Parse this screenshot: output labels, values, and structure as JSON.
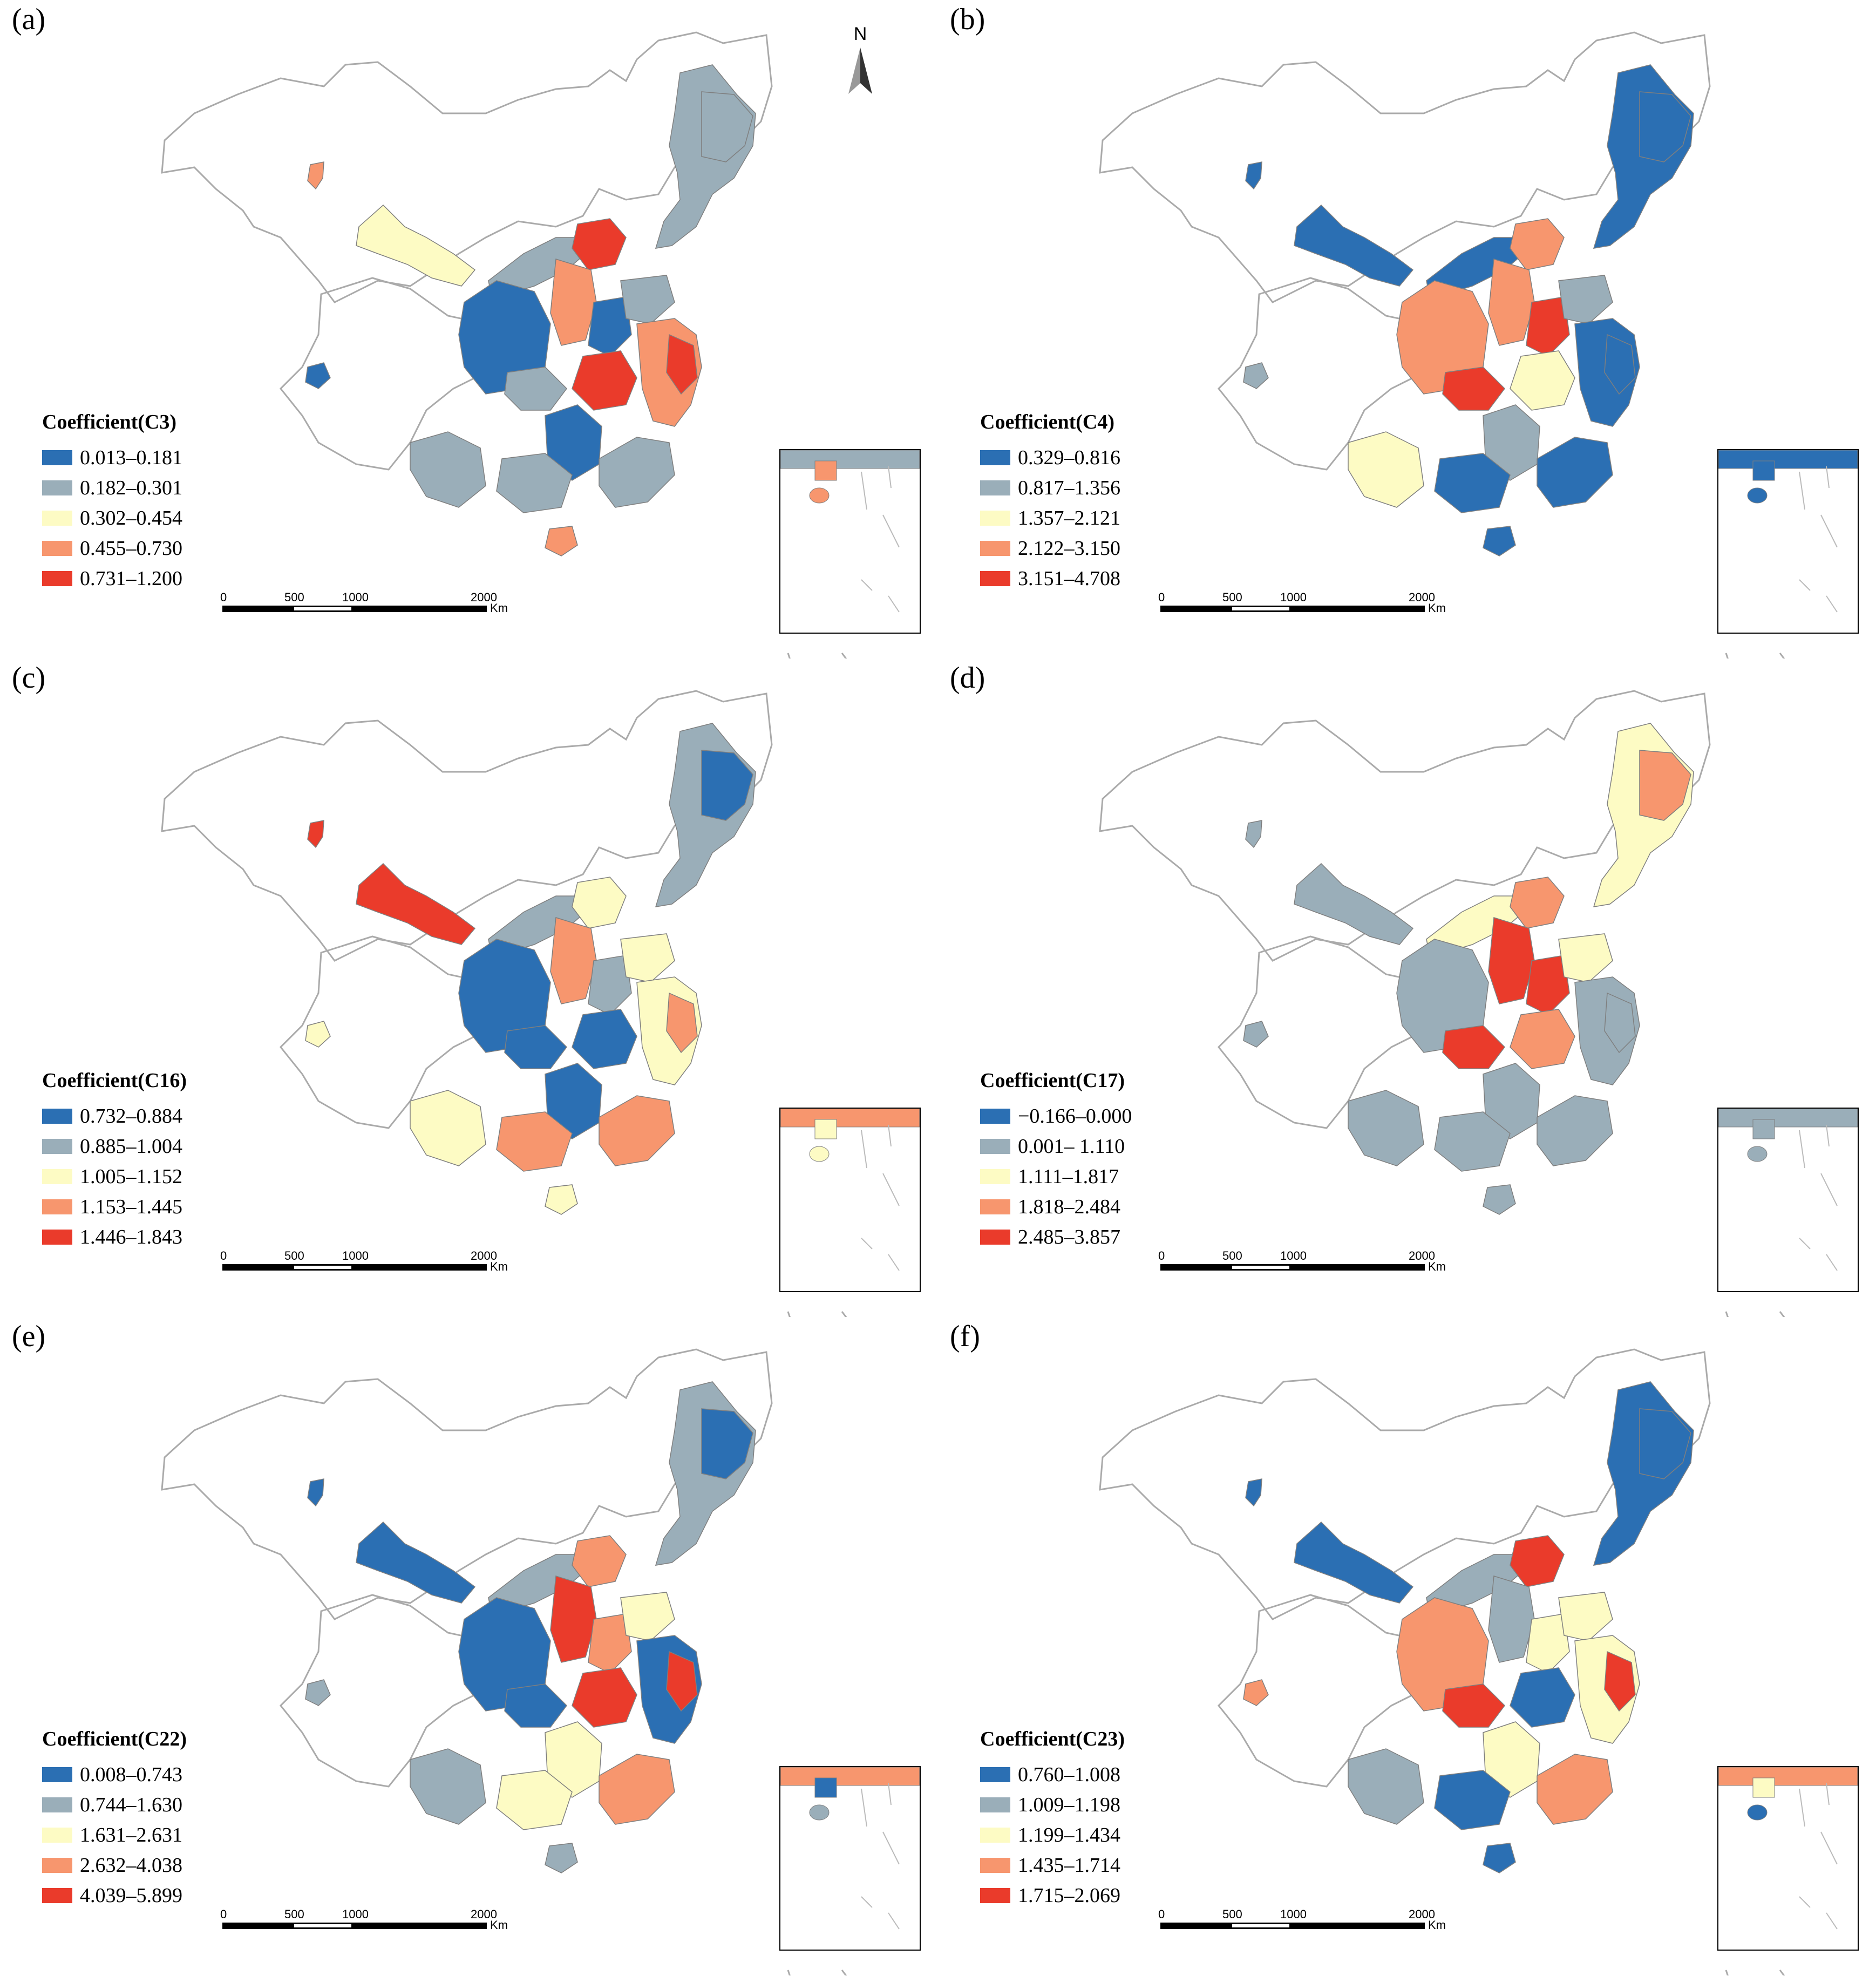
{
  "colors": [
    "#2b6fb3",
    "#9aaeb9",
    "#fdfbc4",
    "#f7966e",
    "#ea3b2b"
  ],
  "north_label": "N",
  "scale_bar": {
    "ticks": [
      "0",
      "500",
      "1000",
      "2000"
    ],
    "unit": "Km"
  },
  "panels": [
    {
      "label": "(a)",
      "title": "Coefficient(C3)",
      "classes": [
        "0.013–0.181",
        "0.182–0.301",
        "0.302–0.454",
        "0.455–0.730",
        "0.731–1.200"
      ],
      "regions": {
        "xj": 3,
        "tb": 0,
        "gs": 2,
        "nm": 1,
        "ne": 1,
        "ne_core": 1,
        "bj": 4,
        "sx": 3,
        "west": 0,
        "cq": 1,
        "henan": 0,
        "shandong": 1,
        "east": 3,
        "east_core": 4,
        "central": 4,
        "hunan": 0,
        "guangdong": 1,
        "guangxi": 1,
        "yunnan": 1,
        "hainan": 3
      }
    },
    {
      "label": "(b)",
      "title": "Coefficient(C4)",
      "classes": [
        "0.329–0.816",
        "0.817–1.356",
        "1.357–2.121",
        "2.122–3.150",
        "3.151–4.708"
      ],
      "regions": {
        "xj": 0,
        "tb": 1,
        "gs": 0,
        "nm": 0,
        "ne": 0,
        "ne_core": 0,
        "bj": 3,
        "sx": 3,
        "west": 3,
        "cq": 4,
        "henan": 4,
        "shandong": 1,
        "east": 0,
        "east_core": 0,
        "central": 2,
        "hunan": 1,
        "guangdong": 0,
        "guangxi": 0,
        "yunnan": 2,
        "hainan": 0
      }
    },
    {
      "label": "(c)",
      "title": "Coefficient(C16)",
      "classes": [
        "0.732–0.884",
        "0.885–1.004",
        "1.005–1.152",
        "1.153–1.445",
        "1.446–1.843"
      ],
      "regions": {
        "xj": 4,
        "tb": 2,
        "gs": 4,
        "nm": 1,
        "ne": 1,
        "ne_core": 0,
        "bj": 2,
        "sx": 3,
        "west": 0,
        "cq": 0,
        "henan": 1,
        "shandong": 2,
        "east": 2,
        "east_core": 3,
        "central": 0,
        "hunan": 0,
        "guangdong": 3,
        "guangxi": 3,
        "yunnan": 2,
        "hainan": 2
      }
    },
    {
      "label": "(d)",
      "title": "Coefficient(C17)",
      "classes": [
        "−0.166–0.000",
        "0.001– 1.110",
        "1.111–1.817",
        "1.818–2.484",
        "2.485–3.857"
      ],
      "regions": {
        "xj": 1,
        "tb": 1,
        "gs": 1,
        "nm": 2,
        "ne": 2,
        "ne_core": 3,
        "bj": 3,
        "sx": 4,
        "west": 1,
        "cq": 4,
        "henan": 4,
        "shandong": 2,
        "east": 1,
        "east_core": 1,
        "central": 3,
        "hunan": 1,
        "guangdong": 1,
        "guangxi": 1,
        "yunnan": 1,
        "hainan": 1
      }
    },
    {
      "label": "(e)",
      "title": "Coefficient(C22)",
      "classes": [
        "0.008–0.743",
        "0.744–1.630",
        "1.631–2.631",
        "2.632–4.038",
        "4.039–5.899"
      ],
      "regions": {
        "xj": 0,
        "tb": 1,
        "gs": 0,
        "nm": 1,
        "ne": 1,
        "ne_core": 0,
        "bj": 3,
        "sx": 4,
        "west": 0,
        "cq": 0,
        "henan": 3,
        "shandong": 2,
        "east": 0,
        "east_core": 4,
        "central": 4,
        "hunan": 2,
        "guangdong": 3,
        "guangxi": 2,
        "yunnan": 1,
        "hainan": 1
      }
    },
    {
      "label": "(f)",
      "title": "Coefficient(C23)",
      "classes": [
        "0.760–1.008",
        "1.009–1.198",
        "1.199–1.434",
        "1.435–1.714",
        "1.715–2.069"
      ],
      "regions": {
        "xj": 0,
        "tb": 3,
        "gs": 0,
        "nm": 1,
        "ne": 0,
        "ne_core": 0,
        "bj": 4,
        "sx": 1,
        "west": 3,
        "cq": 4,
        "henan": 2,
        "shandong": 2,
        "east": 2,
        "east_core": 4,
        "central": 0,
        "hunan": 2,
        "guangdong": 3,
        "guangxi": 0,
        "yunnan": 1,
        "hainan": 0
      }
    }
  ]
}
